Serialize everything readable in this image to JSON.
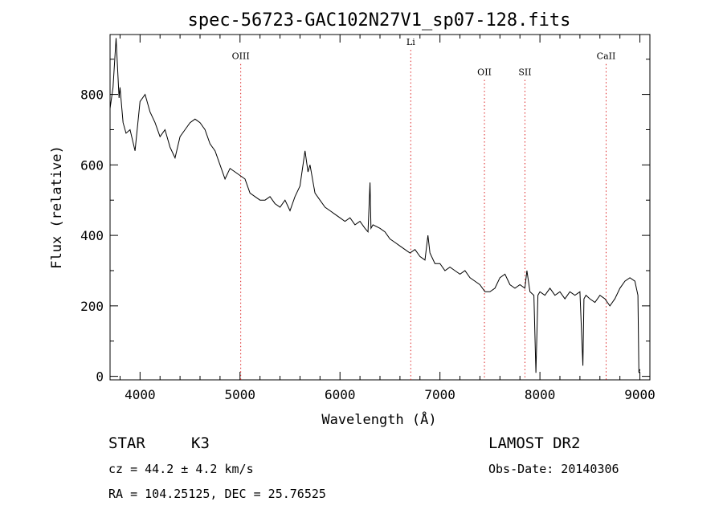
{
  "chart_data": {
    "type": "line",
    "title": "spec-56723-GAC102N27V1_sp07-128.fits",
    "xlabel": "Wavelength (Å)",
    "ylabel": "Flux (relative)",
    "xlim": [
      3700,
      9100
    ],
    "ylim": [
      -10,
      970
    ],
    "x_ticks": [
      4000,
      5000,
      6000,
      7000,
      8000,
      9000
    ],
    "y_ticks": [
      0,
      200,
      400,
      600,
      800
    ],
    "line_color": "#000000",
    "marker_color": "#d22",
    "series": [
      {
        "x": [
          3700,
          3730,
          3760,
          3790,
          3800,
          3830,
          3860,
          3900,
          3950,
          4000,
          4050,
          4100,
          4150,
          4200,
          4250,
          4300,
          4350,
          4400,
          4450,
          4500,
          4550,
          4600,
          4650,
          4700,
          4750,
          4800,
          4850,
          4900,
          4950,
          5000,
          5050,
          5100,
          5150,
          5200,
          5250,
          5300,
          5350,
          5400,
          5450,
          5500,
          5550,
          5600,
          5650,
          5680,
          5700,
          5750,
          5800,
          5850,
          5900,
          5950,
          6000,
          6050,
          6100,
          6150,
          6200,
          6250,
          6280,
          6300,
          6310,
          6330,
          6400,
          6450,
          6500,
          6550,
          6600,
          6650,
          6700,
          6750,
          6800,
          6850,
          6880,
          6900,
          6950,
          7000,
          7050,
          7100,
          7150,
          7200,
          7250,
          7300,
          7350,
          7400,
          7450,
          7500,
          7550,
          7600,
          7650,
          7700,
          7750,
          7800,
          7850,
          7870,
          7900,
          7940,
          7960,
          7980,
          8000,
          8050,
          8100,
          8150,
          8200,
          8250,
          8300,
          8350,
          8400,
          8430,
          8440,
          8460,
          8500,
          8550,
          8600,
          8650,
          8700,
          8750,
          8800,
          8850,
          8900,
          8950,
          8980,
          8990,
          9000
        ],
        "y": [
          760,
          820,
          960,
          790,
          820,
          720,
          690,
          700,
          640,
          780,
          800,
          750,
          720,
          680,
          700,
          650,
          620,
          680,
          700,
          720,
          730,
          720,
          700,
          660,
          640,
          600,
          560,
          590,
          580,
          570,
          560,
          520,
          510,
          500,
          500,
          510,
          490,
          480,
          500,
          470,
          510,
          540,
          640,
          580,
          600,
          520,
          500,
          480,
          470,
          460,
          450,
          440,
          450,
          430,
          440,
          420,
          410,
          550,
          420,
          430,
          420,
          410,
          390,
          380,
          370,
          360,
          350,
          360,
          340,
          330,
          400,
          350,
          320,
          320,
          300,
          310,
          300,
          290,
          300,
          280,
          270,
          260,
          240,
          240,
          250,
          280,
          290,
          260,
          250,
          260,
          250,
          300,
          240,
          230,
          10,
          230,
          240,
          230,
          250,
          230,
          240,
          220,
          240,
          230,
          240,
          30,
          220,
          230,
          220,
          210,
          230,
          220,
          200,
          220,
          250,
          270,
          280,
          270,
          230,
          10,
          20
        ]
      }
    ],
    "line_markers": [
      {
        "label": "OIII",
        "x": 5007,
        "label_y": 900
      },
      {
        "label": "Li",
        "x": 6708,
        "label_y": 940
      },
      {
        "label": "OII",
        "x": 7445,
        "label_y": 855
      },
      {
        "label": "SII",
        "x": 7850,
        "label_y": 855
      },
      {
        "label": "CaII",
        "x": 8662,
        "label_y": 900
      }
    ]
  },
  "footer": {
    "class_label": "STAR",
    "subclass_label": "K3",
    "survey_label": "LAMOST DR2",
    "cz_text": "cz = 44.2 ± 4.2 km/s",
    "obs_date_text": "Obs-Date: 20140306",
    "coords_text": "RA = 104.25125, DEC =  25.76525"
  }
}
